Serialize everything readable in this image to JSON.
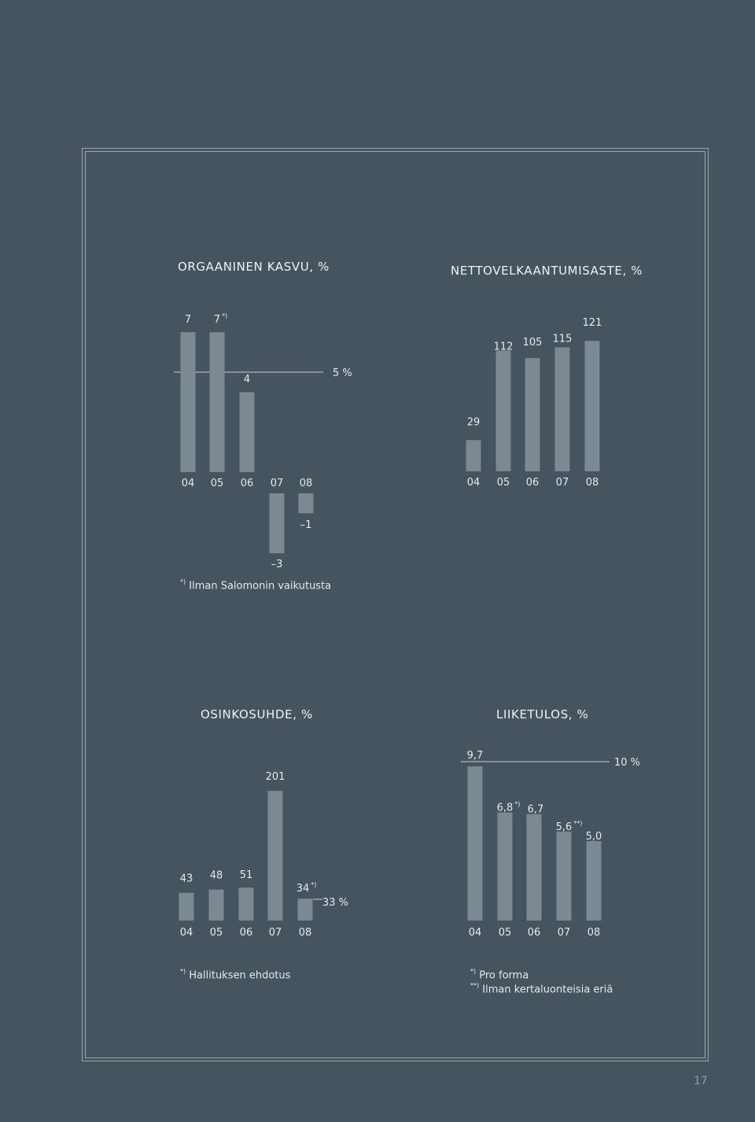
{
  "page_number": "17",
  "chart_data": [
    {
      "id": "orgaaninen",
      "type": "bar",
      "title": "ORGAANINEN KASVU, %",
      "categories": [
        "04",
        "05",
        "06",
        "07",
        "08"
      ],
      "values": [
        7,
        7,
        4,
        -3,
        -1
      ],
      "value_labels": [
        "7",
        "7",
        "4",
        "–3",
        "–1"
      ],
      "label_marks": [
        "",
        "*)",
        "",
        "",
        ""
      ],
      "target": {
        "value": 5,
        "label": "5 %"
      },
      "footnotes": [
        {
          "mark": "*)",
          "text": "Ilman Salomonin vaikutusta"
        }
      ]
    },
    {
      "id": "nettovelka",
      "type": "bar",
      "title": "NETTOVELKAANTUMISASTE, %",
      "categories": [
        "04",
        "05",
        "06",
        "07",
        "08"
      ],
      "values": [
        29,
        112,
        105,
        115,
        121
      ],
      "value_labels": [
        "29",
        "112",
        "105",
        "115",
        "121"
      ],
      "label_marks": [
        "",
        "",
        "",
        "",
        ""
      ],
      "footnotes": []
    },
    {
      "id": "osinkosuhde",
      "type": "bar",
      "title": "OSINKOSUHDE, %",
      "categories": [
        "04",
        "05",
        "06",
        "07",
        "08"
      ],
      "values": [
        43,
        48,
        51,
        201,
        34
      ],
      "value_labels": [
        "43",
        "48",
        "51",
        "201",
        "34"
      ],
      "label_marks": [
        "",
        "",
        "",
        "",
        "*)"
      ],
      "target": {
        "value": 33,
        "label": "33 %"
      },
      "footnotes": [
        {
          "mark": "*)",
          "text": "Hallituksen ehdotus"
        }
      ]
    },
    {
      "id": "liiketulos",
      "type": "bar",
      "title": "LIIKETULOS, %",
      "categories": [
        "04",
        "05",
        "06",
        "07",
        "08"
      ],
      "values": [
        9.7,
        6.8,
        6.7,
        5.6,
        5.0
      ],
      "value_labels": [
        "9,7",
        "6,8",
        "6,7",
        "5,6",
        "5,0"
      ],
      "label_marks": [
        "",
        "*)",
        "",
        "**)",
        ""
      ],
      "target": {
        "value": 10,
        "label": "10 %"
      },
      "footnotes": [
        {
          "mark": "*)",
          "text": "Pro forma"
        },
        {
          "mark": "**)",
          "text": "Ilman kertaluonteisia eriä"
        }
      ]
    }
  ],
  "colors": {
    "background": "#46545f",
    "bar": "#7c8992",
    "text": "#e4e9ec",
    "line": "#c4ccd1",
    "frame": "#9aa6ae"
  }
}
